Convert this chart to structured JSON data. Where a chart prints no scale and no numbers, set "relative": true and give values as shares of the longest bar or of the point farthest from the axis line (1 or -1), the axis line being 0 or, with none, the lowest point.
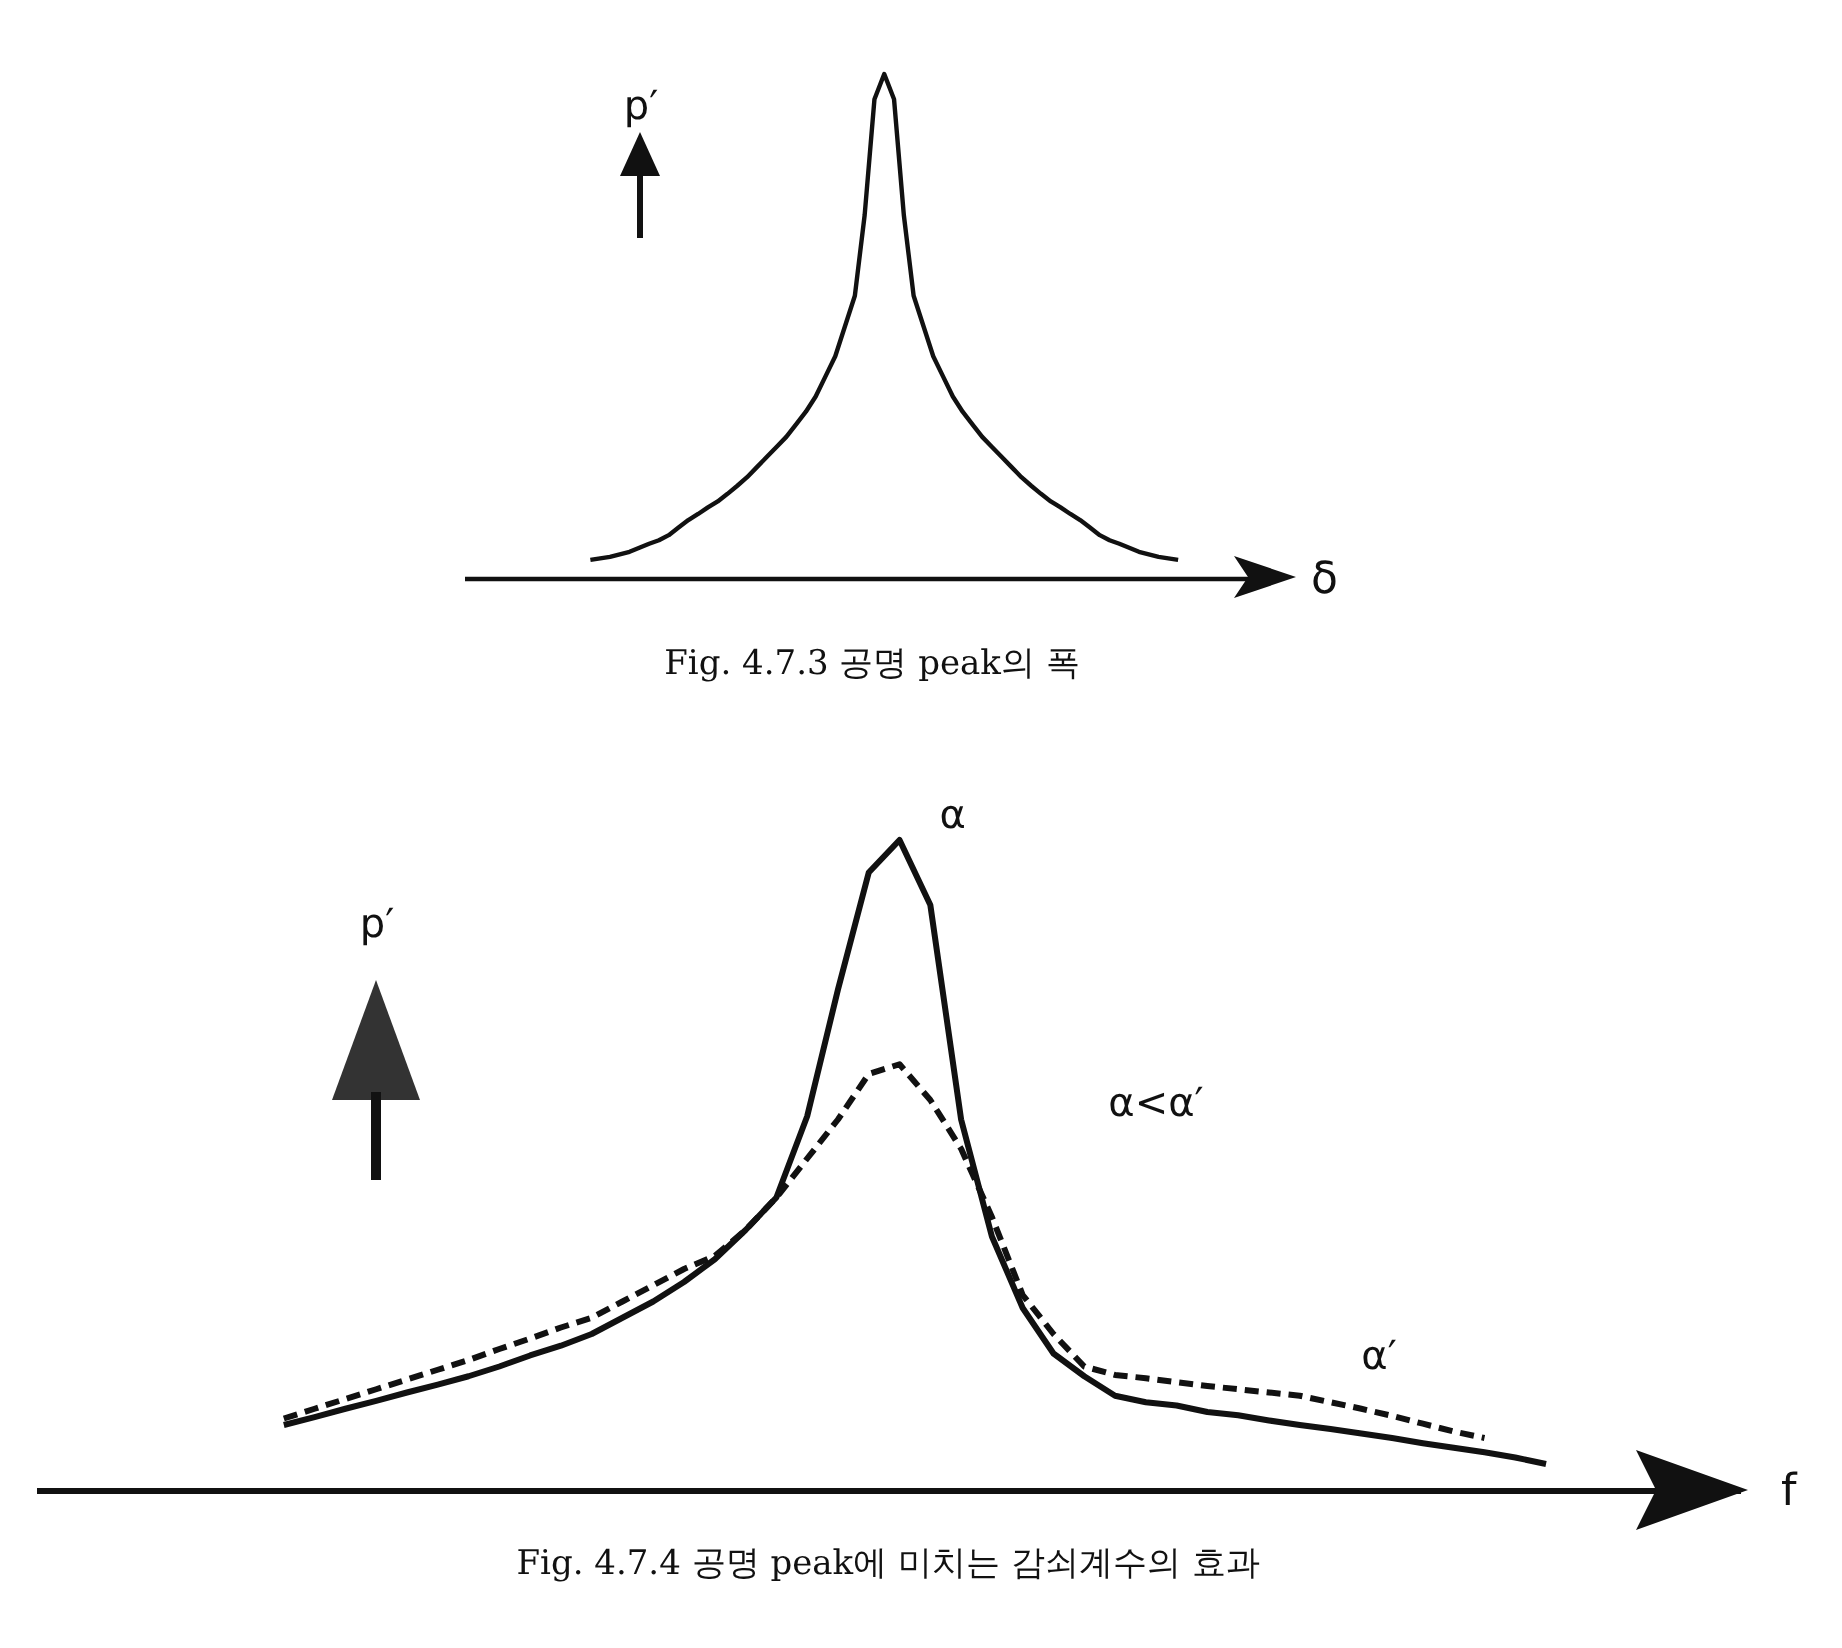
{
  "chart_data": [
    {
      "type": "line",
      "title": "Fig. 4.7.3  공명 peak의 폭",
      "xlabel": "δ",
      "ylabel": "p′",
      "relative": true,
      "categories": [
        null,
        null,
        null,
        null,
        null,
        null,
        null,
        null,
        null,
        null,
        null,
        null,
        null,
        null,
        null,
        null,
        null,
        null,
        null,
        null,
        null,
        null,
        null,
        null,
        null,
        null,
        null,
        null,
        null,
        null,
        null,
        null,
        null,
        null,
        null,
        null,
        null,
        null,
        null,
        null,
        null,
        null,
        null,
        null,
        null,
        null,
        null,
        null,
        null,
        null,
        null,
        null,
        null,
        null,
        null,
        null,
        null,
        null,
        null,
        null,
        null
      ],
      "series": [
        {
          "color": "#111111",
          "line_style": "solid",
          "values": [
            0.036,
            0.039,
            0.042,
            0.047,
            0.052,
            0.06,
            0.068,
            0.075,
            0.085,
            0.1,
            0.115,
            0.127,
            0.14,
            0.152,
            0.167,
            0.183,
            0.2,
            0.22,
            0.24,
            0.26,
            0.28,
            0.305,
            0.33,
            0.36,
            0.4,
            0.44,
            0.5,
            0.56,
            0.72,
            0.95,
            1.0,
            0.95,
            0.72,
            0.56,
            0.5,
            0.44,
            0.4,
            0.36,
            0.33,
            0.305,
            0.28,
            0.26,
            0.24,
            0.22,
            0.2,
            0.183,
            0.167,
            0.152,
            0.14,
            0.127,
            0.115,
            0.1,
            0.085,
            0.075,
            0.068,
            0.06,
            0.052,
            0.047,
            0.042,
            0.039,
            0.036
          ]
        }
      ]
    },
    {
      "type": "line",
      "title": "Fig. 4.7.4  공명 peak에 미치는 감쇠계수의 효과",
      "xlabel": "f",
      "ylabel": "p′",
      "relative": true,
      "annotations": [
        "α<α′"
      ],
      "categories": [
        null,
        null,
        null,
        null,
        null,
        null,
        null,
        null,
        null,
        null,
        null,
        null,
        null,
        null,
        null,
        null,
        null,
        null,
        null,
        null,
        null,
        null,
        null,
        null,
        null,
        null,
        null,
        null,
        null,
        null,
        null,
        null,
        null,
        null,
        null,
        null,
        null,
        null,
        null,
        null,
        null,
        null
      ],
      "series": [
        {
          "name": "α",
          "color": "#111111",
          "line_style": "solid",
          "values": [
            0.1,
            0.112,
            0.125,
            0.137,
            0.15,
            0.162,
            0.175,
            0.19,
            0.207,
            0.222,
            0.24,
            0.265,
            0.29,
            0.32,
            0.355,
            0.4,
            0.45,
            0.575,
            0.77,
            0.95,
            1.0,
            0.9,
            0.57,
            0.39,
            0.28,
            0.21,
            0.175,
            0.145,
            0.135,
            0.13,
            0.12,
            0.115,
            0.107,
            0.1,
            0.094,
            0.087,
            0.08,
            0.072,
            0.065,
            0.058,
            0.05,
            0.04
          ]
        },
        {
          "name": "α′",
          "color": "#111111",
          "line_style": "dashed",
          "values": [
            0.11,
            0.125,
            0.14,
            0.155,
            0.17,
            0.185,
            0.2,
            0.217,
            0.233,
            0.25,
            0.265,
            0.29,
            0.315,
            0.34,
            0.36,
            0.4,
            0.45,
            0.51,
            0.57,
            0.64,
            0.655,
            0.6,
            0.525,
            0.42,
            0.3,
            0.24,
            0.19,
            0.177,
            0.172,
            0.166,
            0.16,
            0.155,
            0.15,
            0.145,
            0.135,
            0.125,
            0.114,
            0.102,
            0.09,
            0.08,
            null,
            null
          ]
        }
      ]
    }
  ]
}
